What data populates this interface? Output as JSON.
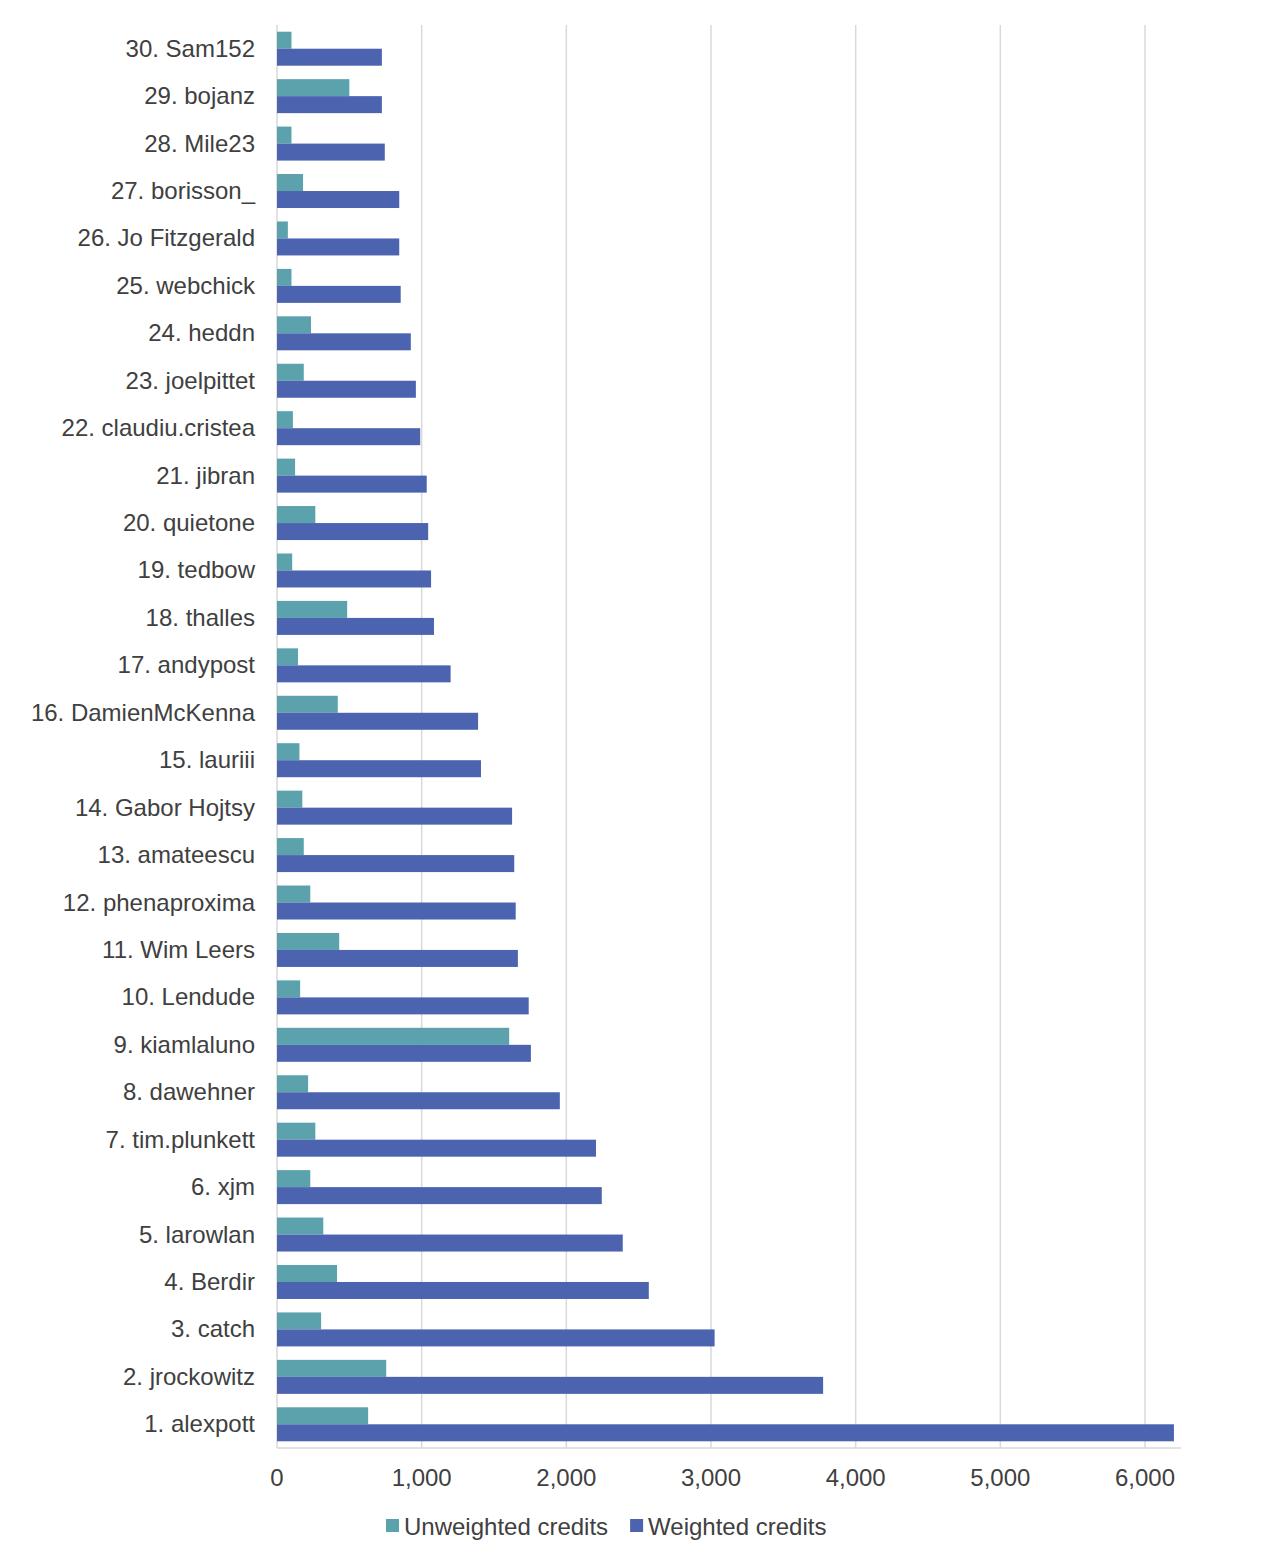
{
  "chart_data": {
    "type": "bar",
    "orientation": "horizontal",
    "categories": [
      "30. Sam152",
      "29. bojanz",
      "28. Mile23",
      "27. borisson_",
      "26. Jo Fitzgerald",
      "25. webchick",
      "24. heddn",
      "23. joelpittet",
      "22. claudiu.cristea",
      "21. jibran",
      "20. quietone",
      "19. tedbow",
      "18. thalles",
      "17. andypost",
      "16. DamienMcKenna",
      "15. lauriii",
      "14. Gabor Hojtsy",
      "13. amateescu",
      "12. phenaproxima",
      "11. Wim Leers",
      "10. Lendude",
      "9. kiamlaluno",
      "8. dawehner",
      "7. tim.plunkett",
      "6. xjm",
      "5. larowlan",
      "4. Berdir",
      "3. catch",
      "2. jrockowitz",
      "1. alexpott"
    ],
    "series": [
      {
        "name": "Unweighted credits",
        "color": "#5ba2ad",
        "values": [
          100,
          500,
          100,
          180,
          75,
          100,
          235,
          185,
          110,
          125,
          265,
          105,
          485,
          145,
          420,
          155,
          175,
          185,
          230,
          430,
          160,
          1605,
          215,
          265,
          230,
          320,
          415,
          305,
          755,
          630
        ]
      },
      {
        "name": "Weighted credits",
        "color": "#4c64b0",
        "values": [
          725,
          725,
          745,
          845,
          845,
          855,
          925,
          960,
          990,
          1035,
          1045,
          1065,
          1085,
          1200,
          1390,
          1410,
          1625,
          1640,
          1650,
          1665,
          1740,
          1755,
          1955,
          2205,
          2245,
          2390,
          2570,
          3025,
          3775,
          6200
        ]
      }
    ],
    "xlim": [
      0,
      6250
    ],
    "xticks": [
      0,
      {
        "value": 1000,
        "label": "1,000"
      },
      {
        "value": 2000,
        "label": "2,000"
      },
      {
        "value": 3000,
        "label": "3,000"
      },
      {
        "value": 4000,
        "label": "4,000"
      },
      {
        "value": 5000,
        "label": "5,000"
      },
      {
        "value": 6000,
        "label": "6,000"
      }
    ],
    "grid": true,
    "legend": "bottom"
  }
}
